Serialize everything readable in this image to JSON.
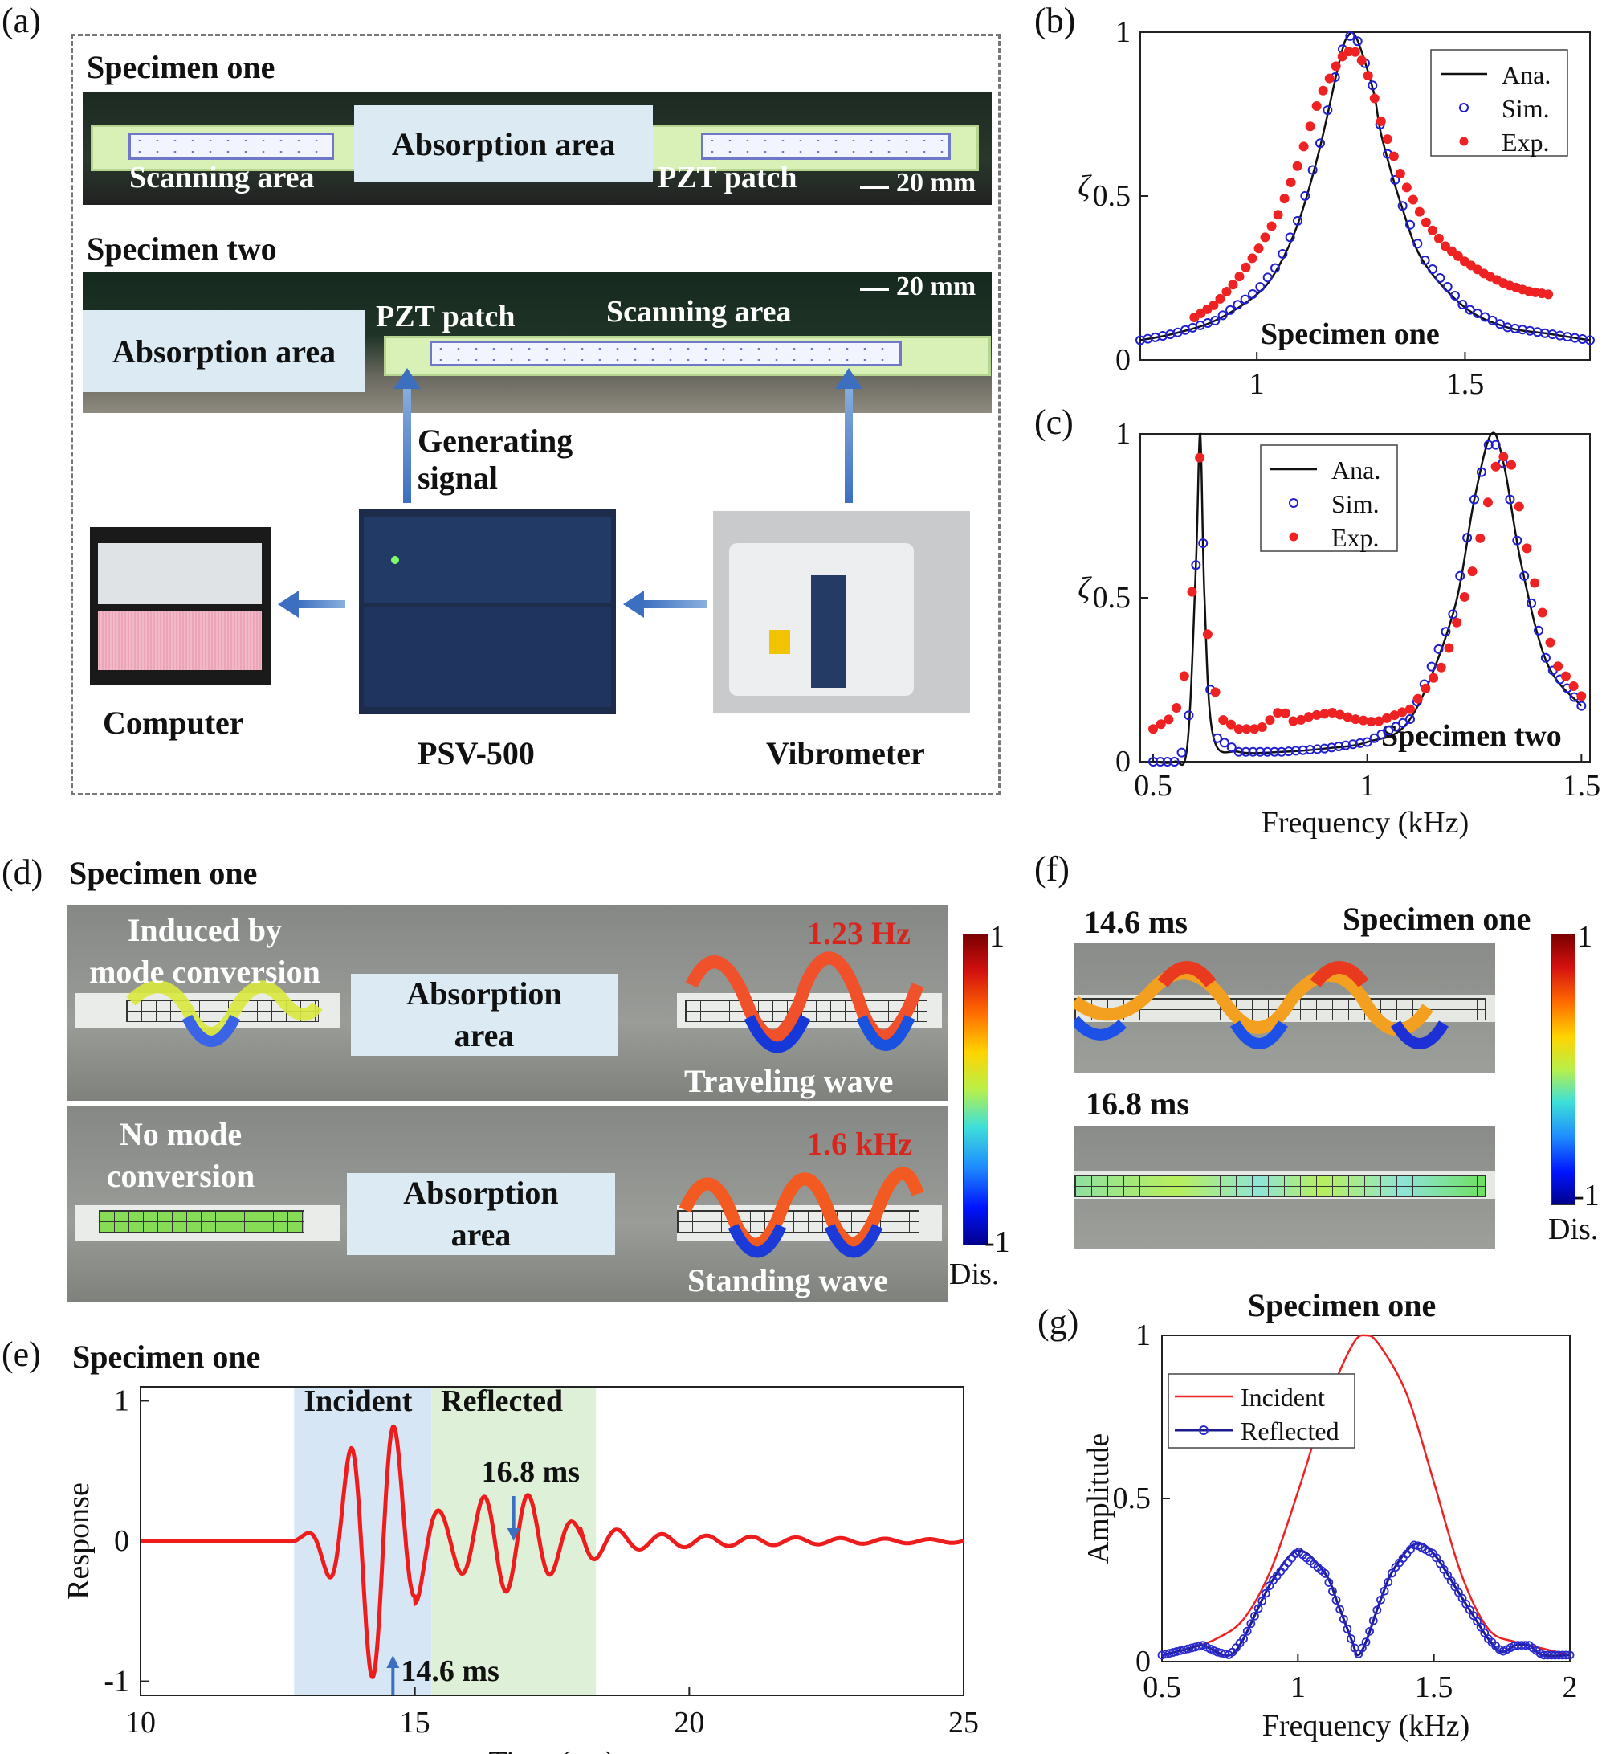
{
  "panels": {
    "a": {
      "label": "(a)",
      "specimen_one": "Specimen one",
      "specimen_two": "Specimen two",
      "scanning_area": "Scanning area",
      "absorption_area": "Absorption area",
      "pzt_patch": "PZT patch",
      "scale_bar": "20 mm",
      "generating_signal_line1": "Generating",
      "generating_signal_line2": "signal",
      "computer": "Computer",
      "psv": "PSV-500",
      "vibrometer": "Vibrometer"
    },
    "d": {
      "label": "(d)",
      "title": "Specimen one",
      "top_left_line1": "Induced by",
      "top_left_line2": "mode conversion",
      "absorption_line1": "Absorption",
      "absorption_line2": "area",
      "top_freq": "1.23 Hz",
      "traveling": "Traveling wave",
      "bottom_left_line1": "No mode",
      "bottom_left_line2": "conversion",
      "bottom_freq": "1.6 kHz",
      "standing": "Standing wave",
      "cb_max": "1",
      "cb_min": "-1",
      "cb_unit": "Dis."
    },
    "f": {
      "label": "(f)",
      "title": "Specimen one",
      "time1": "14.6 ms",
      "time2": "16.8 ms",
      "cb_max": "1",
      "cb_min": "-1",
      "cb_unit": "Dis."
    },
    "e_label": "(e)",
    "b_label": "(b)",
    "c_label": "(c)",
    "g_label": "(g)"
  },
  "chart_data": [
    {
      "id": "b",
      "type": "line",
      "title": "",
      "annotation": "Specimen one",
      "xlabel": "",
      "ylabel": "ζ",
      "xlim": [
        0.72,
        1.8
      ],
      "ylim": [
        0,
        1
      ],
      "xticks": [
        "1",
        "1.5"
      ],
      "yticks": [
        "0",
        "0.5",
        "1"
      ],
      "legend": [
        "Ana.",
        "Sim.",
        "Exp."
      ],
      "legend_position": "top-right",
      "series": [
        {
          "name": "Ana.",
          "x": [
            0.72,
            0.8,
            0.9,
            1.0,
            1.05,
            1.1,
            1.15,
            1.2,
            1.22,
            1.24,
            1.28,
            1.3,
            1.35,
            1.4,
            1.5,
            1.6,
            1.7,
            1.8
          ],
          "values": [
            0.06,
            0.08,
            0.12,
            0.2,
            0.28,
            0.42,
            0.64,
            0.92,
            0.99,
            0.98,
            0.82,
            0.68,
            0.46,
            0.3,
            0.16,
            0.1,
            0.08,
            0.06
          ]
        },
        {
          "name": "Sim.",
          "x": [
            0.72,
            0.8,
            0.9,
            1.0,
            1.05,
            1.1,
            1.15,
            1.2,
            1.22,
            1.24,
            1.28,
            1.3,
            1.35,
            1.4,
            1.5,
            1.6,
            1.7,
            1.8
          ],
          "values": [
            0.06,
            0.08,
            0.12,
            0.21,
            0.29,
            0.43,
            0.65,
            0.93,
            0.99,
            0.98,
            0.83,
            0.69,
            0.47,
            0.31,
            0.16,
            0.1,
            0.08,
            0.06
          ]
        },
        {
          "name": "Exp.",
          "x": [
            0.85,
            0.9,
            0.95,
            1.0,
            1.05,
            1.1,
            1.15,
            1.2,
            1.23,
            1.26,
            1.3,
            1.35,
            1.4,
            1.45,
            1.5,
            1.55,
            1.6,
            1.65,
            1.7
          ],
          "values": [
            0.13,
            0.17,
            0.24,
            0.33,
            0.44,
            0.6,
            0.8,
            0.92,
            0.95,
            0.9,
            0.72,
            0.55,
            0.43,
            0.35,
            0.3,
            0.26,
            0.23,
            0.21,
            0.2
          ]
        }
      ]
    },
    {
      "id": "c",
      "type": "line",
      "title": "",
      "annotation": "Specimen two",
      "xlabel": "Frequency (kHz)",
      "ylabel": "ζ",
      "xlim": [
        0.47,
        1.52
      ],
      "ylim": [
        0,
        1
      ],
      "xticks": [
        "0.5",
        "1",
        "1.5"
      ],
      "yticks": [
        "0",
        "0.5",
        "1"
      ],
      "legend": [
        "Ana.",
        "Sim.",
        "Exp."
      ],
      "legend_position": "top-left",
      "series": [
        {
          "name": "Ana.",
          "x": [
            0.5,
            0.55,
            0.58,
            0.6,
            0.61,
            0.62,
            0.64,
            0.7,
            0.8,
            0.9,
            1.0,
            1.1,
            1.2,
            1.25,
            1.29,
            1.32,
            1.36,
            1.42,
            1.5
          ],
          "values": [
            0.0,
            0.0,
            0.05,
            0.6,
            1.0,
            0.5,
            0.08,
            0.03,
            0.03,
            0.04,
            0.06,
            0.13,
            0.45,
            0.8,
            1.0,
            0.9,
            0.6,
            0.3,
            0.17
          ]
        },
        {
          "name": "Sim.",
          "x": [
            0.5,
            0.55,
            0.58,
            0.6,
            0.61,
            0.62,
            0.64,
            0.7,
            0.8,
            0.9,
            1.0,
            1.1,
            1.2,
            1.25,
            1.29,
            1.32,
            1.36,
            1.42,
            1.5
          ],
          "values": [
            0.0,
            0.0,
            0.05,
            0.6,
            1.0,
            0.5,
            0.08,
            0.03,
            0.03,
            0.04,
            0.06,
            0.13,
            0.45,
            0.8,
            1.0,
            0.9,
            0.6,
            0.3,
            0.17
          ]
        },
        {
          "name": "Exp.",
          "x": [
            0.5,
            0.55,
            0.58,
            0.6,
            0.61,
            0.63,
            0.66,
            0.7,
            0.75,
            0.8,
            0.83,
            0.87,
            0.92,
            0.97,
            1.02,
            1.1,
            1.18,
            1.25,
            1.3,
            1.33,
            1.38,
            1.44,
            1.5
          ],
          "values": [
            0.1,
            0.14,
            0.3,
            0.7,
            0.95,
            0.3,
            0.13,
            0.1,
            0.1,
            0.16,
            0.12,
            0.14,
            0.15,
            0.13,
            0.12,
            0.16,
            0.3,
            0.6,
            0.9,
            0.95,
            0.6,
            0.3,
            0.2
          ]
        }
      ]
    },
    {
      "id": "e",
      "type": "line",
      "title": "Specimen one",
      "xlabel": "Time (ms)",
      "ylabel": "Response",
      "xlim": [
        10,
        25
      ],
      "ylim": [
        -1.1,
        1.1
      ],
      "xticks": [
        "10",
        "15",
        "20",
        "25"
      ],
      "yticks": [
        "-1",
        "0",
        "1"
      ],
      "regions": [
        {
          "label": "Incident",
          "x": [
            12.8,
            15.3
          ],
          "color": "#d6e6f5"
        },
        {
          "label": "Reflected",
          "x": [
            15.3,
            18.3
          ],
          "color": "#dff0d8"
        }
      ],
      "annotations": [
        {
          "text": "16.8 ms",
          "x": 16.8
        },
        {
          "text": "14.6 ms",
          "x": 14.6
        }
      ],
      "series": [
        {
          "name": "",
          "x_start": 10,
          "x_end": 25,
          "envelope_peak_time": 14.3,
          "color": "#ee1c1c"
        }
      ]
    },
    {
      "id": "g",
      "type": "line",
      "title": "Specimen one",
      "xlabel": "Frequency (kHz)",
      "ylabel": "Amplitude",
      "xlim": [
        0.5,
        2
      ],
      "ylim": [
        0,
        1
      ],
      "xticks": [
        "0.5",
        "1",
        "1.5",
        "2"
      ],
      "yticks": [
        "0",
        "0.5",
        "1"
      ],
      "legend": [
        "Incident",
        "Reflected"
      ],
      "legend_position": "top-left",
      "series": [
        {
          "name": "Incident",
          "x": [
            0.5,
            0.6,
            0.7,
            0.8,
            0.9,
            1.0,
            1.1,
            1.2,
            1.25,
            1.3,
            1.4,
            1.5,
            1.6,
            1.7,
            1.8,
            1.9,
            2.0
          ],
          "values": [
            0.02,
            0.04,
            0.07,
            0.13,
            0.28,
            0.52,
            0.78,
            0.97,
            1.0,
            0.97,
            0.82,
            0.55,
            0.27,
            0.1,
            0.06,
            0.04,
            0.02
          ]
        },
        {
          "name": "Reflected",
          "x": [
            0.5,
            0.6,
            0.65,
            0.7,
            0.75,
            0.8,
            0.9,
            1.0,
            1.1,
            1.15,
            1.2,
            1.22,
            1.25,
            1.3,
            1.35,
            1.43,
            1.5,
            1.6,
            1.7,
            1.75,
            1.8,
            1.85,
            1.9,
            2.0
          ],
          "values": [
            0.02,
            0.04,
            0.05,
            0.03,
            0.02,
            0.07,
            0.24,
            0.34,
            0.27,
            0.17,
            0.06,
            0.02,
            0.06,
            0.18,
            0.28,
            0.36,
            0.33,
            0.2,
            0.07,
            0.03,
            0.05,
            0.05,
            0.02,
            0.02
          ]
        }
      ]
    }
  ]
}
